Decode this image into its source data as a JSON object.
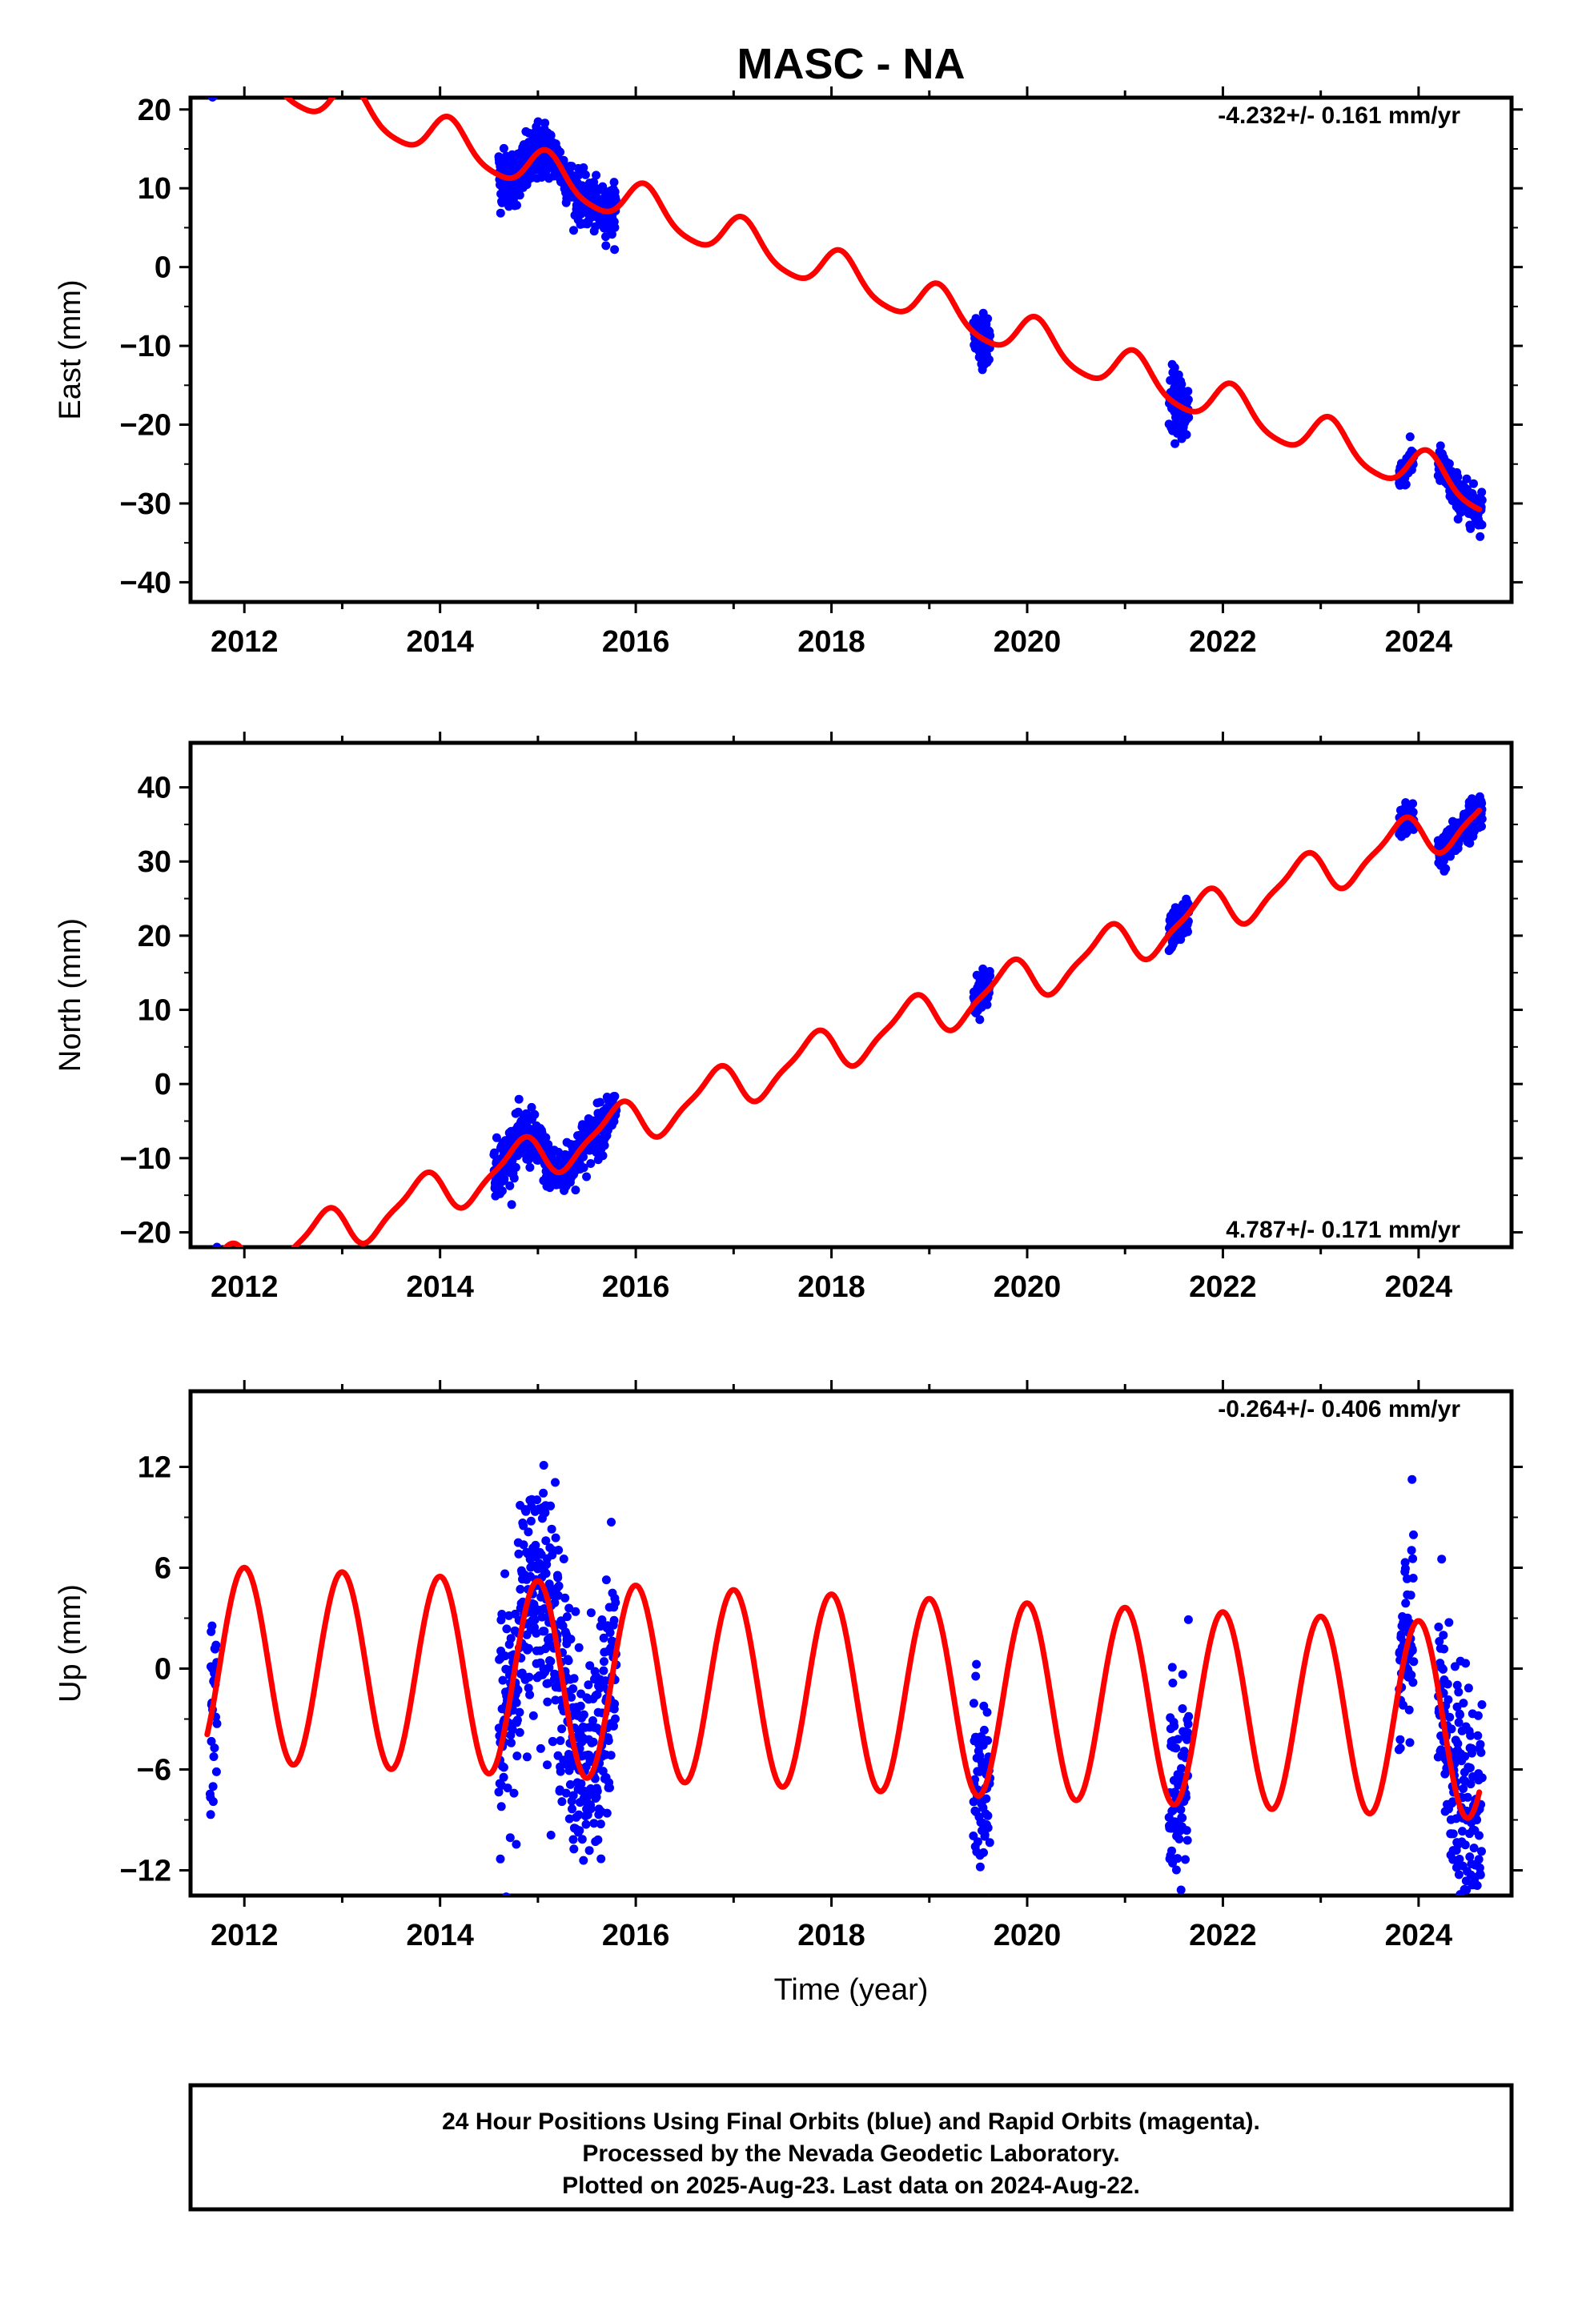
{
  "title": "MASC - NA",
  "footer": {
    "lines": [
      "24 Hour Positions Using Final Orbits (blue) and Rapid Orbits (magenta).",
      "Processed by the Nevada Geodetic Laboratory.",
      "Plotted on 2025-Aug-23. Last data on 2024-Aug-22."
    ]
  },
  "colors": {
    "observations": "#0000ff",
    "model": "#ff0000",
    "frame": "#000000"
  },
  "chart_data": [
    {
      "type": "scatter",
      "ylabel": "East (mm)",
      "xlabel": "",
      "xlim": [
        2011.45,
        2024.95
      ],
      "ylim": [
        -42.5,
        21.5
      ],
      "xticks": [
        "2012",
        "2014",
        "2016",
        "2018",
        "2020",
        "2022",
        "2024"
      ],
      "yticks": [
        "20",
        "10",
        "0",
        "−10",
        "−20",
        "−30",
        "−40"
      ],
      "rate_annotation": "-4.232+/- 0.161 mm/yr",
      "rate_position": "top-right",
      "model": {
        "offset": 26.3,
        "rate": -4.232,
        "annual_amplitude": 2.6,
        "annual_phase_year": 0.85,
        "semiannual_amplitude": 0.5,
        "semiannual_phase_year": 0.45
      },
      "data_segments": [
        {
          "start": 2011.65,
          "end": 2011.72,
          "spread": 1.2
        },
        {
          "start": 2014.6,
          "end": 2015.1,
          "spread": 1.8
        },
        {
          "start": 2015.1,
          "end": 2015.8,
          "spread": 1.5
        },
        {
          "start": 2019.45,
          "end": 2019.62,
          "spread": 1.5
        },
        {
          "start": 2021.45,
          "end": 2021.65,
          "spread": 2.0
        },
        {
          "start": 2023.8,
          "end": 2023.95,
          "spread": 1.0
        },
        {
          "start": 2024.2,
          "end": 2024.65,
          "spread": 1.2
        }
      ]
    },
    {
      "type": "scatter",
      "ylabel": "North (mm)",
      "xlabel": "",
      "xlim": [
        2011.45,
        2024.95
      ],
      "ylim": [
        -22,
        46
      ],
      "xticks": [
        "2012",
        "2014",
        "2016",
        "2018",
        "2020",
        "2022",
        "2024"
      ],
      "yticks": [
        "40",
        "30",
        "20",
        "10",
        "0",
        "−10",
        "−20"
      ],
      "rate_annotation": "4.787+/- 0.171 mm/yr",
      "rate_position": "bottom-right",
      "model": {
        "offset": -25.8,
        "rate": 4.787,
        "annual_amplitude": 2.9,
        "annual_phase_year": 0.55,
        "semiannual_amplitude": 0.8,
        "semiannual_phase_year": 0.3
      },
      "data_segments": [
        {
          "start": 2011.65,
          "end": 2011.72,
          "spread": 1.2
        },
        {
          "start": 2014.55,
          "end": 2015.05,
          "spread": 1.8
        },
        {
          "start": 2015.05,
          "end": 2015.8,
          "spread": 1.6
        },
        {
          "start": 2019.45,
          "end": 2019.62,
          "spread": 1.5
        },
        {
          "start": 2021.45,
          "end": 2021.65,
          "spread": 1.2
        },
        {
          "start": 2023.8,
          "end": 2023.95,
          "spread": 1.0
        },
        {
          "start": 2024.2,
          "end": 2024.65,
          "spread": 1.2
        }
      ]
    },
    {
      "type": "scatter",
      "ylabel": "Up (mm)",
      "xlabel": "Time (year)",
      "xlim": [
        2011.45,
        2024.95
      ],
      "ylim": [
        -13.5,
        16.5
      ],
      "xticks": [
        "2012",
        "2014",
        "2016",
        "2018",
        "2020",
        "2022",
        "2024"
      ],
      "yticks": [
        "12",
        "6",
        "0",
        "−6",
        "−12"
      ],
      "rate_annotation": "-0.264+/- 0.406 mm/yr",
      "rate_position": "top-right",
      "model": {
        "offset": 0.3,
        "rate": -0.264,
        "annual_amplitude": 5.8,
        "annual_phase_year": 0.75,
        "semiannual_amplitude": 0.0,
        "semiannual_phase_year": 0.0
      },
      "data_segments": [
        {
          "start": 2011.65,
          "end": 2011.72,
          "spread": 3.0
        },
        {
          "start": 2014.6,
          "end": 2015.05,
          "spread": 3.5
        },
        {
          "start": 2015.05,
          "end": 2015.8,
          "spread": 3.5
        },
        {
          "start": 2019.45,
          "end": 2019.62,
          "spread": 3.0
        },
        {
          "start": 2021.45,
          "end": 2021.65,
          "spread": 3.0
        },
        {
          "start": 2023.8,
          "end": 2023.95,
          "spread": 3.0
        },
        {
          "start": 2024.2,
          "end": 2024.65,
          "spread": 3.5
        }
      ]
    }
  ]
}
